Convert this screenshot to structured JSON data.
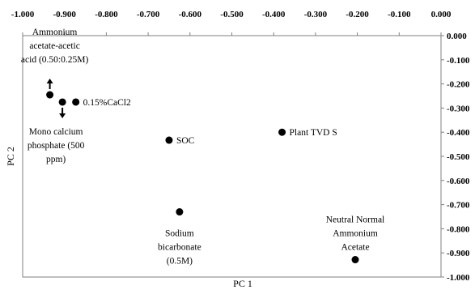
{
  "chart_data": {
    "type": "scatter",
    "title": "",
    "xlabel": "PC 1",
    "ylabel": "PC 2",
    "xlim": [
      -1.0,
      0.0
    ],
    "ylim": [
      -1.0,
      0.0
    ],
    "x_axis_position": "top",
    "y_axis_position": "right",
    "x_ticks": [
      {
        "v": -1.0,
        "label": "-1.000"
      },
      {
        "v": -0.9,
        "label": "-0.900"
      },
      {
        "v": -0.8,
        "label": "-0.800"
      },
      {
        "v": -0.7,
        "label": "-0.700"
      },
      {
        "v": -0.6,
        "label": "-0.600"
      },
      {
        "v": -0.5,
        "label": "-0.500"
      },
      {
        "v": -0.4,
        "label": "-0.400"
      },
      {
        "v": -0.3,
        "label": "-0.300"
      },
      {
        "v": -0.2,
        "label": "-0.200"
      },
      {
        "v": -0.1,
        "label": "-0.100"
      },
      {
        "v": 0.0,
        "label": "0.000"
      }
    ],
    "y_ticks": [
      {
        "v": 0.0,
        "label": "0.000"
      },
      {
        "v": -0.1,
        "label": "-0.100"
      },
      {
        "v": -0.2,
        "label": "-0.200"
      },
      {
        "v": -0.3,
        "label": "-0.300"
      },
      {
        "v": -0.4,
        "label": "-0.400"
      },
      {
        "v": -0.5,
        "label": "-0.500"
      },
      {
        "v": -0.6,
        "label": "-0.600"
      },
      {
        "v": -0.7,
        "label": "-0.700"
      },
      {
        "v": -0.8,
        "label": "-0.800"
      },
      {
        "v": -0.9,
        "label": "-0.900"
      },
      {
        "v": -1.0,
        "label": "-1.000"
      }
    ],
    "grid": false,
    "legend": "none",
    "marker_color": "#000000",
    "points": [
      {
        "x": -0.935,
        "y": -0.245,
        "label_lines": [
          "Ammonium",
          "acetate-acetic",
          "acid (0.50:0.25M)"
        ],
        "label_side": "above",
        "arrow": "up"
      },
      {
        "x": -0.905,
        "y": -0.275,
        "label_lines": [
          "Mono calcium",
          "phosphate (500",
          "ppm)"
        ],
        "label_side": "below",
        "arrow": "down"
      },
      {
        "x": -0.873,
        "y": -0.275,
        "label_lines": [
          "0.15%CaCl2"
        ],
        "label_side": "right"
      },
      {
        "x": -0.65,
        "y": -0.433,
        "label_lines": [
          "SOC"
        ],
        "label_side": "right"
      },
      {
        "x": -0.38,
        "y": -0.4,
        "label_lines": [
          "Plant TVD S"
        ],
        "label_side": "right"
      },
      {
        "x": -0.625,
        "y": -0.73,
        "label_lines": [
          "Sodium",
          "bicarbonate",
          "(0.5M)"
        ],
        "label_side": "below"
      },
      {
        "x": -0.205,
        "y": -0.928,
        "label_lines": [
          "Neutral Normal",
          "Ammonium",
          "Acetate"
        ],
        "label_side": "above"
      }
    ]
  }
}
